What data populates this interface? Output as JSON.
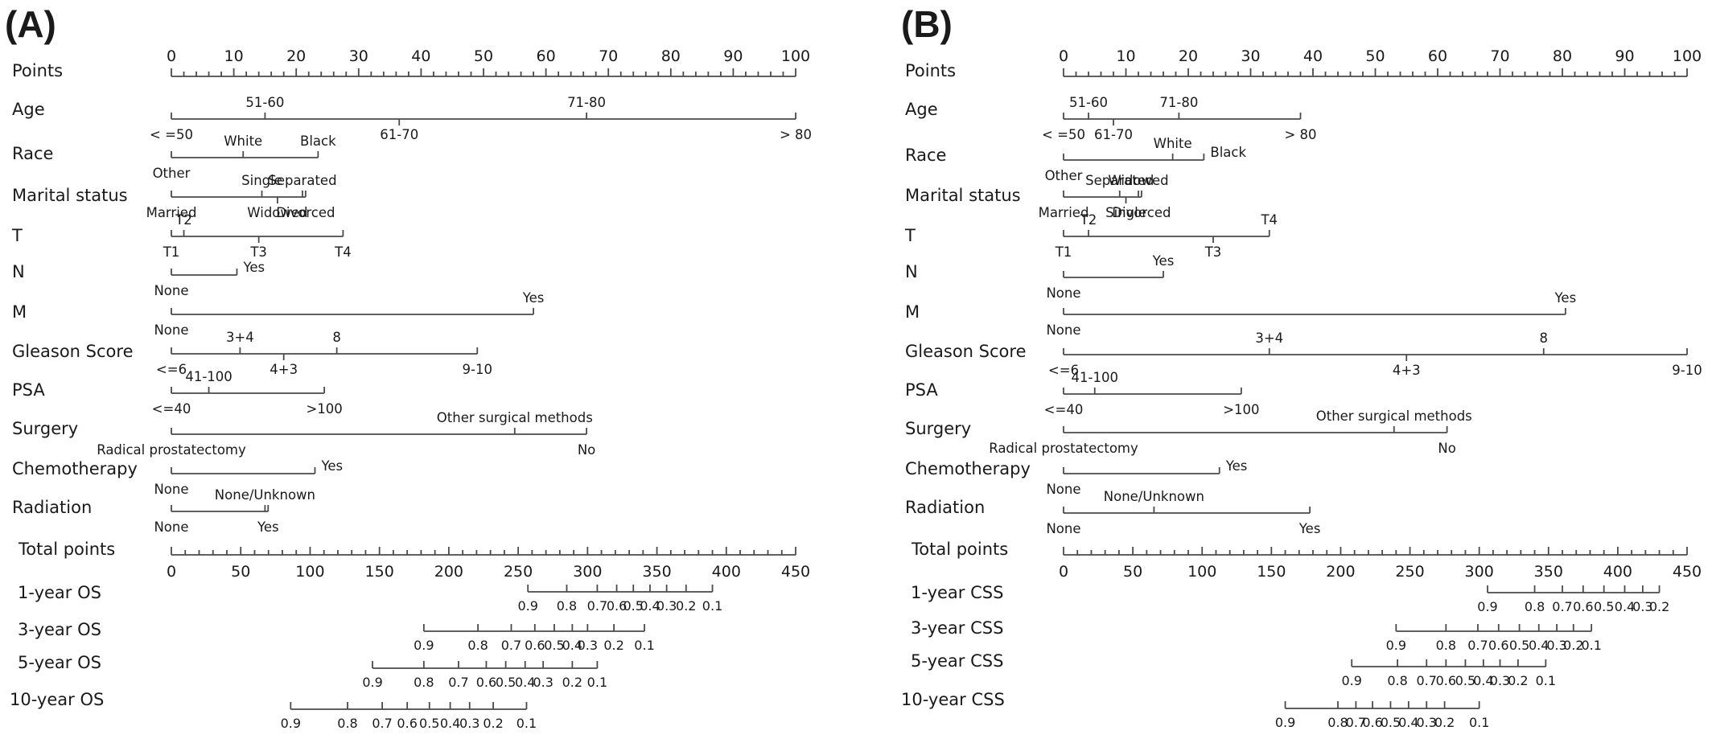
{
  "chart_data": [
    {
      "type": "nomogram",
      "panel_label": "(A)",
      "points_scale": {
        "label": "Points",
        "min": 0,
        "max": 100,
        "major": [
          0,
          10,
          20,
          30,
          40,
          50,
          60,
          70,
          80,
          90,
          100
        ]
      },
      "predictors": [
        {
          "name": "Age",
          "levels": [
            {
              "label": "< =50",
              "points": 0,
              "pos": "below"
            },
            {
              "label": "51-60",
              "points": 15,
              "pos": "above"
            },
            {
              "label": "61-70",
              "points": 36.5,
              "pos": "below"
            },
            {
              "label": "71-80",
              "points": 66.5,
              "pos": "above"
            },
            {
              "label": "> 80",
              "points": 100,
              "pos": "below"
            }
          ]
        },
        {
          "name": "Race",
          "levels": [
            {
              "label": "Other",
              "points": 0,
              "pos": "below"
            },
            {
              "label": "White",
              "points": 11.5,
              "pos": "above"
            },
            {
              "label": "Black",
              "points": 23.5,
              "pos": "above"
            }
          ]
        },
        {
          "name": "Marital status",
          "levels": [
            {
              "label": "Married",
              "points": 0,
              "pos": "below"
            },
            {
              "label": "Single",
              "points": 14.5,
              "pos": "above"
            },
            {
              "label": "Widowed",
              "points": 17,
              "pos": "below"
            },
            {
              "label": "Separated",
              "points": 21,
              "pos": "above"
            },
            {
              "label": "Divorced",
              "points": 21.5,
              "pos": "below"
            }
          ]
        },
        {
          "name": "T",
          "levels": [
            {
              "label": "T1",
              "points": 0,
              "pos": "below"
            },
            {
              "label": "T2",
              "points": 2,
              "pos": "above"
            },
            {
              "label": "T3",
              "points": 14,
              "pos": "below"
            },
            {
              "label": "T4",
              "points": 27.5,
              "pos": "below"
            }
          ]
        },
        {
          "name": "N",
          "levels": [
            {
              "label": "None",
              "points": 0,
              "pos": "below"
            },
            {
              "label": "Yes",
              "points": 10.5,
              "pos": "right"
            }
          ]
        },
        {
          "name": "M",
          "levels": [
            {
              "label": "None",
              "points": 0,
              "pos": "below"
            },
            {
              "label": "Yes",
              "points": 58,
              "pos": "above"
            }
          ]
        },
        {
          "name": "Gleason Score",
          "levels": [
            {
              "label": "<=6",
              "points": 0,
              "pos": "below"
            },
            {
              "label": "3+4",
              "points": 11,
              "pos": "above"
            },
            {
              "label": "4+3",
              "points": 18,
              "pos": "below"
            },
            {
              "label": "8",
              "points": 26.5,
              "pos": "above"
            },
            {
              "label": "9-10",
              "points": 49,
              "pos": "below"
            }
          ]
        },
        {
          "name": "PSA",
          "levels": [
            {
              "label": "<=40",
              "points": 0,
              "pos": "below"
            },
            {
              "label": "41-100",
              "points": 6,
              "pos": "above"
            },
            {
              "label": ">100",
              "points": 24.5,
              "pos": "below"
            }
          ]
        },
        {
          "name": "Surgery",
          "levels": [
            {
              "label": "Radical prostatectomy",
              "points": 0,
              "pos": "below"
            },
            {
              "label": "Other surgical methods",
              "points": 55,
              "pos": "above"
            },
            {
              "label": "No",
              "points": 66.5,
              "pos": "below"
            }
          ]
        },
        {
          "name": "Chemotherapy",
          "levels": [
            {
              "label": "None",
              "points": 0,
              "pos": "below"
            },
            {
              "label": "Yes",
              "points": 23,
              "pos": "right"
            }
          ]
        },
        {
          "name": "Radiation",
          "levels": [
            {
              "label": "None",
              "points": 0,
              "pos": "below"
            },
            {
              "label": "None/Unknown",
              "points": 15,
              "pos": "above"
            },
            {
              "label": "Yes",
              "points": 15.5,
              "pos": "below"
            }
          ]
        }
      ],
      "total_points_scale": {
        "label": "Total points",
        "min": 0,
        "max": 450,
        "major": [
          0,
          50,
          100,
          150,
          200,
          250,
          300,
          350,
          400,
          450
        ]
      },
      "survival_axes": [
        {
          "name": "1-year OS",
          "labels": [
            "0.9",
            "0.8",
            "0.7",
            "0.6",
            "0.5",
            "0.4",
            "0.3",
            "0.2",
            "0.1"
          ],
          "total_points": [
            257,
            285,
            307,
            321,
            333,
            345,
            357,
            371,
            390
          ]
        },
        {
          "name": "3-year OS",
          "labels": [
            "0.9",
            "0.8",
            "0.7",
            "0.6",
            "0.5",
            "0.4",
            "0.3",
            "0.2",
            "0.1"
          ],
          "total_points": [
            182,
            221,
            245,
            262,
            276,
            289,
            300,
            319,
            341
          ]
        },
        {
          "name": "5-year OS",
          "labels": [
            "0.9",
            "0.8",
            "0.7",
            "0.6",
            "0.5",
            "0.4",
            "0.3",
            "0.2",
            "0.1"
          ],
          "total_points": [
            145,
            182,
            207,
            227,
            241,
            255,
            268,
            289,
            307
          ]
        },
        {
          "name": "10-year OS",
          "labels": [
            "0.9",
            "0.8",
            "0.7",
            "0.6",
            "0.5",
            "0.4",
            "0.3",
            "0.2",
            "0.1"
          ],
          "total_points": [
            86,
            127,
            152,
            170,
            186,
            201,
            215,
            232,
            256
          ]
        }
      ]
    },
    {
      "type": "nomogram",
      "panel_label": "(B)",
      "points_scale": {
        "label": "Points",
        "min": 0,
        "max": 100,
        "major": [
          0,
          10,
          20,
          30,
          40,
          50,
          60,
          70,
          80,
          90,
          100
        ]
      },
      "predictors": [
        {
          "name": "Age",
          "levels": [
            {
              "label": "< =50",
              "points": 0,
              "pos": "below"
            },
            {
              "label": "51-60",
              "points": 4,
              "pos": "above"
            },
            {
              "label": "61-70",
              "points": 8,
              "pos": "below"
            },
            {
              "label": "71-80",
              "points": 18.5,
              "pos": "above"
            },
            {
              "label": "> 80",
              "points": 38,
              "pos": "below"
            }
          ]
        },
        {
          "name": "Race",
          "levels": [
            {
              "label": "Other",
              "points": 0,
              "pos": "below"
            },
            {
              "label": "White",
              "points": 17.5,
              "pos": "above"
            },
            {
              "label": "Black",
              "points": 22.5,
              "pos": "right"
            }
          ]
        },
        {
          "name": "Marital status",
          "levels": [
            {
              "label": "Married",
              "points": 0,
              "pos": "below"
            },
            {
              "label": "Separated",
              "points": 9,
              "pos": "above"
            },
            {
              "label": "Single",
              "points": 10,
              "pos": "below"
            },
            {
              "label": "Widowed",
              "points": 12,
              "pos": "above"
            },
            {
              "label": "Divorced",
              "points": 12.5,
              "pos": "below"
            }
          ]
        },
        {
          "name": "T",
          "levels": [
            {
              "label": "T1",
              "points": 0,
              "pos": "below"
            },
            {
              "label": "T2",
              "points": 4,
              "pos": "above"
            },
            {
              "label": "T3",
              "points": 24,
              "pos": "below"
            },
            {
              "label": "T4",
              "points": 33,
              "pos": "above"
            }
          ]
        },
        {
          "name": "N",
          "levels": [
            {
              "label": "None",
              "points": 0,
              "pos": "below"
            },
            {
              "label": "Yes",
              "points": 16,
              "pos": "above"
            }
          ]
        },
        {
          "name": "M",
          "levels": [
            {
              "label": "None",
              "points": 0,
              "pos": "below"
            },
            {
              "label": "Yes",
              "points": 80.5,
              "pos": "above"
            }
          ]
        },
        {
          "name": "Gleason Score",
          "levels": [
            {
              "label": "<=6",
              "points": 0,
              "pos": "below"
            },
            {
              "label": "3+4",
              "points": 33,
              "pos": "above"
            },
            {
              "label": "4+3",
              "points": 55,
              "pos": "below"
            },
            {
              "label": "8",
              "points": 77,
              "pos": "above"
            },
            {
              "label": "9-10",
              "points": 100,
              "pos": "below"
            }
          ]
        },
        {
          "name": "PSA",
          "levels": [
            {
              "label": "<=40",
              "points": 0,
              "pos": "below"
            },
            {
              "label": "41-100",
              "points": 5,
              "pos": "above"
            },
            {
              "label": ">100",
              "points": 28.5,
              "pos": "below"
            }
          ]
        },
        {
          "name": "Surgery",
          "levels": [
            {
              "label": "Radical prostatectomy",
              "points": 0,
              "pos": "below"
            },
            {
              "label": "Other surgical methods",
              "points": 53,
              "pos": "above"
            },
            {
              "label": "No",
              "points": 61.5,
              "pos": "below"
            }
          ]
        },
        {
          "name": "Chemotherapy",
          "levels": [
            {
              "label": "None",
              "points": 0,
              "pos": "below"
            },
            {
              "label": "Yes",
              "points": 25,
              "pos": "right"
            }
          ]
        },
        {
          "name": "Radiation",
          "levels": [
            {
              "label": "None",
              "points": 0,
              "pos": "below"
            },
            {
              "label": "None/Unknown",
              "points": 14.5,
              "pos": "above"
            },
            {
              "label": "Yes",
              "points": 39.5,
              "pos": "below"
            }
          ]
        }
      ],
      "total_points_scale": {
        "label": "Total points",
        "min": 0,
        "max": 450,
        "major": [
          0,
          50,
          100,
          150,
          200,
          250,
          300,
          350,
          400,
          450
        ]
      },
      "survival_axes": [
        {
          "name": "1-year CSS",
          "labels": [
            "0.9",
            "0.8",
            "0.7",
            "0.6",
            "0.5",
            "0.4",
            "0.3",
            "0.2"
          ],
          "total_points": [
            306,
            340,
            360,
            375,
            390,
            405,
            418,
            430
          ]
        },
        {
          "name": "3-year CSS",
          "labels": [
            "0.9",
            "0.8",
            "0.7",
            "0.6",
            "0.5",
            "0.4",
            "0.3",
            "0.2",
            "0.1"
          ],
          "total_points": [
            240,
            276,
            299,
            314,
            329,
            343,
            356,
            368,
            381
          ]
        },
        {
          "name": "5-year CSS",
          "labels": [
            "0.9",
            "0.8",
            "0.7",
            "0.6",
            "0.5",
            "0.4",
            "0.3",
            "0.2",
            "0.1"
          ],
          "total_points": [
            208,
            241,
            262,
            276,
            290,
            303,
            315,
            328,
            348
          ]
        },
        {
          "name": "10-year CSS",
          "labels": [
            "0.9",
            "0.8",
            "0.7",
            "0.6",
            "0.5",
            "0.4",
            "0.3",
            "0.2",
            "0.1"
          ],
          "total_points": [
            160,
            198,
            211,
            223,
            236,
            249,
            262,
            275,
            300
          ]
        }
      ]
    }
  ]
}
